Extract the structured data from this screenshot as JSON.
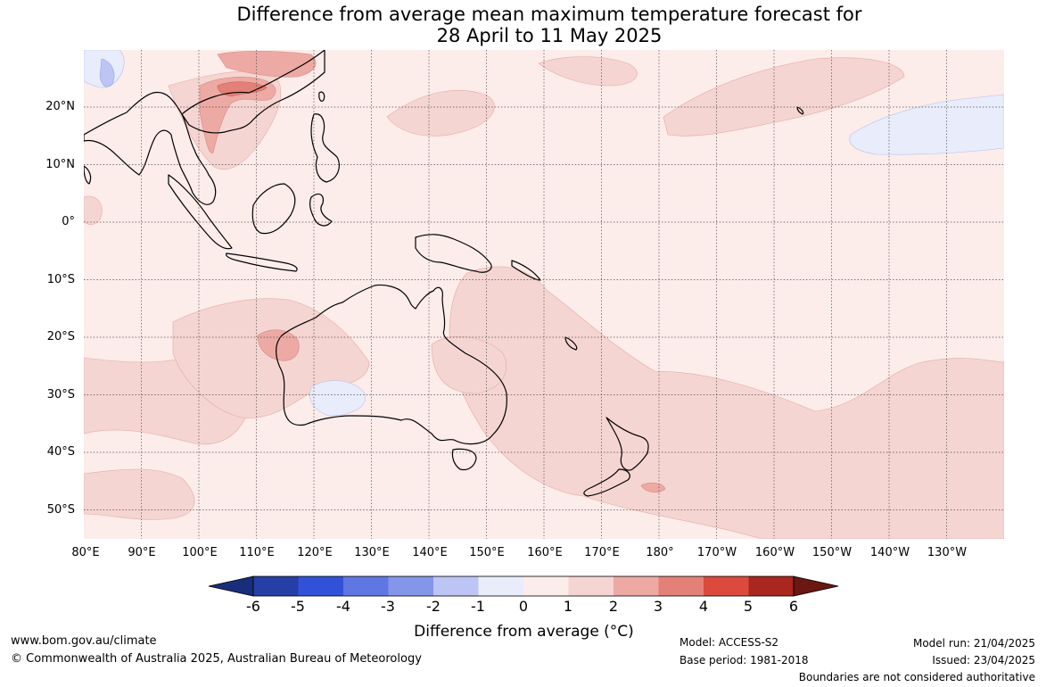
{
  "header": {
    "title_line1": "Difference from average mean maximum temperature forecast for",
    "title_line2": "28 April to 11 May 2025"
  },
  "map": {
    "lat_labels": [
      "20°N",
      "10°N",
      "0°",
      "10°S",
      "20°S",
      "30°S",
      "40°S",
      "50°S"
    ],
    "lon_labels": [
      "80°E",
      "90°E",
      "100°E",
      "110°E",
      "120°E",
      "130°E",
      "140°E",
      "150°E",
      "160°E",
      "170°E",
      "180°",
      "170°W",
      "160°W",
      "150°W",
      "140°W",
      "130°W"
    ],
    "anomaly_areas": [
      {
        "region": "Southern China / Vietnam",
        "category": "+1 to +2"
      },
      {
        "region": "Central South China",
        "category": "+2 to +3"
      },
      {
        "region": "Western Australia (Pilbara)",
        "category": "+1 to +2"
      },
      {
        "region": "Southwest Western Australia",
        "category": "-1 to 0"
      },
      {
        "region": "Tibet / Southwest China",
        "category": "-2 to -1"
      },
      {
        "region": "North Pacific near 20°N 140°W",
        "category": "-1 to 0"
      },
      {
        "region": "South Pacific / Tasman Sea",
        "category": "+1 to +2"
      },
      {
        "region": "Remainder of domain",
        "category": "0 to +1"
      }
    ]
  },
  "colorbar": {
    "ticks": [
      "-6",
      "-5",
      "-4",
      "-3",
      "-2",
      "-1",
      "0",
      "1",
      "2",
      "3",
      "4",
      "5",
      "6"
    ],
    "under_color": "#192e7a",
    "over_color": "#6b1712",
    "colors": [
      "#263fa6",
      "#3152d8",
      "#5e77e3",
      "#8496e9",
      "#bcc5f3",
      "#e8ecfb",
      "#fcecea",
      "#f5d5d2",
      "#eda9a3",
      "#e38077",
      "#dc4a3d",
      "#a9271f"
    ],
    "label": "Difference from average (°C)"
  },
  "footer": {
    "website": "www.bom.gov.au/climate",
    "copyright": "© Commonwealth of Australia 2025, Australian Bureau of Meteorology",
    "model": "Model: ACCESS-S2",
    "base_period": "Base period: 1981-2018",
    "model_run": "Model run: 21/04/2025",
    "issued": "Issued: 23/04/2025",
    "disclaimer": "Boundaries are not considered authoritative"
  }
}
